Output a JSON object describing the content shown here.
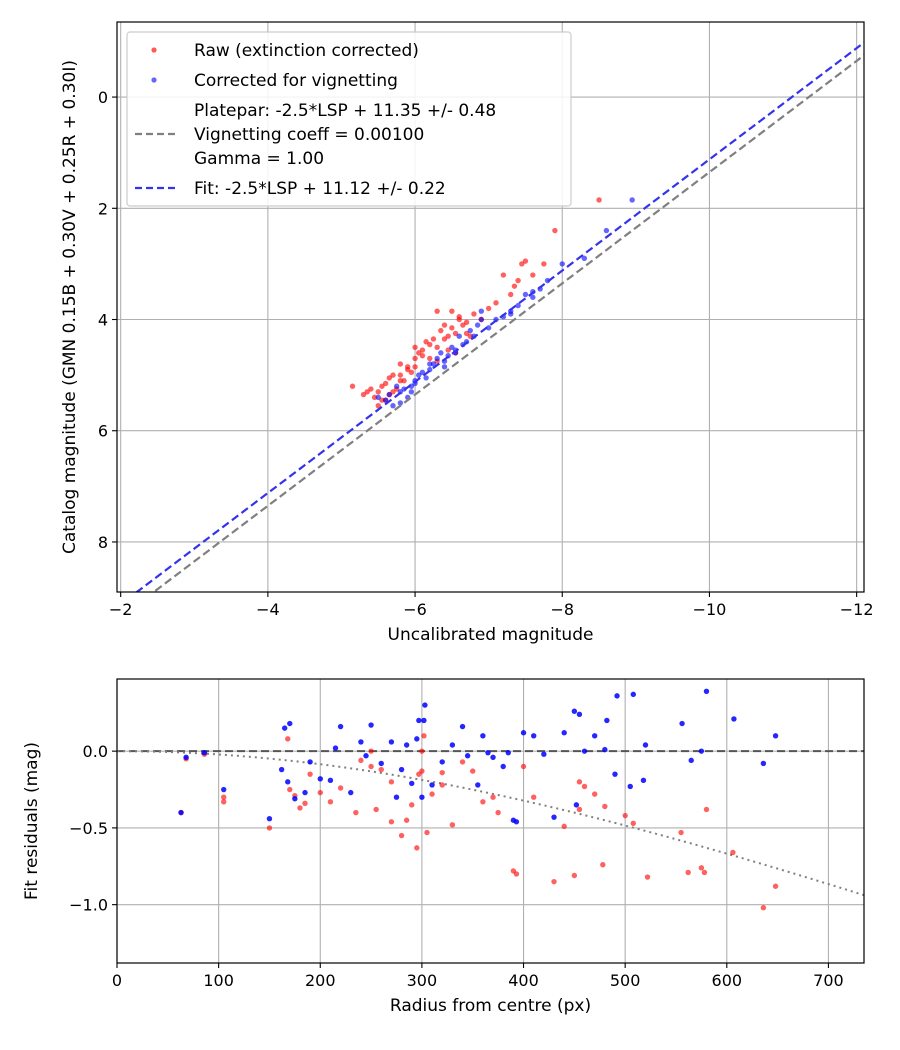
{
  "chart_data": [
    {
      "type": "scatter",
      "xlabel": "Uncalibrated magnitude",
      "ylabel": "Catalog magnitude (GMN 0.15B + 0.30V + 0.25R + 0.30I)",
      "xlim": [
        -1.95,
        -12.1
      ],
      "ylim": [
        8.9,
        -1.35
      ],
      "x_inverted": true,
      "y_inverted": true,
      "grid": true,
      "legend_position": "top-left",
      "xticks": [
        -2,
        -4,
        -6,
        -8,
        -10,
        -12
      ],
      "xtick_labels": [
        "−2",
        "−4",
        "−6",
        "−8",
        "−10",
        "−12"
      ],
      "yticks": [
        0,
        2,
        4,
        6,
        8
      ],
      "ytick_labels": [
        "0",
        "2",
        "4",
        "6",
        "8"
      ],
      "legend": {
        "raw": "Raw (extinction corrected)",
        "corrected": "Corrected for vignetting",
        "platepar": [
          "Platepar: -2.5*LSP + 11.35 +/- 0.48",
          "Vignetting coeff = 0.00100",
          "Gamma = 1.00"
        ],
        "fit": "Fit: -2.5*LSP + 11.12 +/- 0.22"
      },
      "colors": {
        "raw": "#ff0000",
        "corrected": "#0000ff",
        "platepar_line": "#808080",
        "fit_line": "#3333ee"
      },
      "lines": [
        {
          "key": "platepar",
          "slope": 1,
          "intercept": 11.35,
          "style": "dashed"
        },
        {
          "key": "fit",
          "slope": 1,
          "intercept": 11.12,
          "style": "dashed"
        }
      ],
      "series": [
        {
          "key": "raw",
          "name": "Raw (extinction corrected)",
          "x": [
            -5.15,
            -5.3,
            -5.35,
            -5.4,
            -5.45,
            -5.5,
            -5.55,
            -5.6,
            -5.65,
            -5.7,
            -5.75,
            -5.8,
            -5.85,
            -5.9,
            -5.95,
            -6.0,
            -5.5,
            -5.6,
            -5.7,
            -5.8,
            -5.9,
            -6.0,
            -6.05,
            -6.1,
            -6.15,
            -6.2,
            -6.25,
            -6.3,
            -6.35,
            -6.4,
            -6.45,
            -6.5,
            -6.55,
            -6.6,
            -6.65,
            -6.7,
            -6.75,
            -6.8,
            -6.9,
            -7.0,
            -7.1,
            -7.2,
            -7.3,
            -7.35,
            -7.4,
            -7.45,
            -7.5,
            -7.6,
            -7.75,
            -7.9,
            -8.5,
            -6.3,
            -6.5,
            -6.6,
            -6.7,
            -5.8,
            -6.0,
            -6.2,
            -6.4,
            -6.1,
            -5.65,
            -5.55,
            -6.45,
            -6.3,
            -6.55
          ],
          "y": [
            5.2,
            5.35,
            5.3,
            5.25,
            5.4,
            5.3,
            5.2,
            5.15,
            5.35,
            5.0,
            5.25,
            4.8,
            5.1,
            4.9,
            4.95,
            4.7,
            5.55,
            5.45,
            5.3,
            5.1,
            4.85,
            4.5,
            4.6,
            4.55,
            4.4,
            4.7,
            4.35,
            4.5,
            4.2,
            4.1,
            4.3,
            4.15,
            4.25,
            4.0,
            4.1,
            4.05,
            4.3,
            3.9,
            4.0,
            3.8,
            3.7,
            3.2,
            3.55,
            3.4,
            3.3,
            3.0,
            2.95,
            3.2,
            3.0,
            2.4,
            1.85,
            3.85,
            3.85,
            3.95,
            4.25,
            5.0,
            4.85,
            4.45,
            4.35,
            4.65,
            5.05,
            5.45,
            4.55,
            4.75,
            4.6
          ]
        },
        {
          "key": "corrected",
          "name": "Corrected for vignetting",
          "x": [
            -5.5,
            -5.6,
            -5.7,
            -5.8,
            -5.85,
            -5.9,
            -5.95,
            -6.0,
            -6.05,
            -6.1,
            -6.15,
            -6.2,
            -6.25,
            -6.3,
            -6.35,
            -6.4,
            -6.45,
            -6.5,
            -6.55,
            -6.6,
            -6.65,
            -6.7,
            -6.75,
            -6.8,
            -6.85,
            -6.9,
            -7.0,
            -7.1,
            -7.2,
            -7.3,
            -7.4,
            -7.5,
            -7.6,
            -7.7,
            -7.8,
            -8.0,
            -8.3,
            -8.6,
            -8.95,
            -5.75,
            -5.65,
            -5.8,
            -6.0,
            -6.2,
            -6.4,
            -6.9,
            -7.3,
            -7.6,
            -6.55,
            -5.95
          ],
          "y": [
            5.4,
            5.45,
            5.55,
            5.3,
            5.25,
            5.4,
            5.2,
            5.15,
            5.0,
            4.95,
            5.05,
            4.9,
            4.8,
            4.7,
            4.6,
            4.85,
            4.65,
            4.5,
            4.55,
            4.3,
            4.45,
            4.4,
            4.2,
            4.3,
            4.1,
            4.0,
            4.15,
            4.0,
            3.95,
            3.85,
            3.75,
            3.55,
            3.6,
            3.45,
            3.3,
            3.0,
            2.9,
            2.4,
            1.85,
            5.2,
            5.35,
            5.5,
            5.1,
            4.8,
            4.75,
            3.85,
            3.9,
            3.5,
            4.6,
            5.3
          ]
        }
      ]
    },
    {
      "type": "scatter",
      "xlabel": "Radius from centre (px)",
      "ylabel": "Fit residuals (mag)",
      "xlim": [
        0,
        735
      ],
      "ylim": [
        -1.38,
        0.47
      ],
      "grid": true,
      "xticks": [
        0,
        100,
        200,
        300,
        400,
        500,
        600,
        700
      ],
      "xtick_labels": [
        "0",
        "100",
        "200",
        "300",
        "400",
        "500",
        "600",
        "700"
      ],
      "yticks": [
        0.0,
        -0.5,
        -1.0
      ],
      "ytick_labels": [
        "0.0",
        "−0.5",
        "−1.0"
      ],
      "colors": {
        "raw": "#ff0000",
        "corrected": "#0000ff",
        "zero_line": "#555555",
        "model_line": "#808080"
      },
      "lines": [
        {
          "key": "zero",
          "style": "dashed",
          "y": 0
        },
        {
          "key": "vignetting-model",
          "style": "dotted",
          "coeff": 0.001
        }
      ],
      "series": [
        {
          "key": "raw",
          "x": [
            63,
            86,
            105,
            150,
            170,
            175,
            180,
            185,
            190,
            200,
            210,
            220,
            235,
            240,
            250,
            255,
            260,
            270,
            280,
            285,
            290,
            295,
            297,
            300,
            302,
            305,
            310,
            320,
            330,
            340,
            350,
            360,
            370,
            375,
            390,
            393,
            400,
            410,
            430,
            440,
            450,
            455,
            460,
            470,
            478,
            480,
            500,
            508,
            522,
            555,
            562,
            575,
            578,
            580,
            606,
            636,
            648,
            68,
            105,
            168,
            270,
            320,
            455,
            300,
            250
          ],
          "y": [
            -0.4,
            -0.02,
            -0.33,
            -0.5,
            -0.25,
            -0.29,
            -0.37,
            -0.34,
            -0.15,
            -0.27,
            -0.33,
            -0.24,
            -0.4,
            -0.06,
            0.0,
            -0.38,
            -0.12,
            -0.46,
            -0.55,
            -0.45,
            -0.35,
            -0.63,
            -0.15,
            -0.13,
            0.1,
            -0.53,
            -0.28,
            -0.22,
            -0.48,
            -0.07,
            -0.13,
            -0.33,
            -0.3,
            -0.4,
            -0.78,
            -0.8,
            -0.1,
            -0.3,
            -0.85,
            -0.49,
            -0.81,
            -0.2,
            -0.23,
            -0.28,
            -0.74,
            -0.36,
            -0.42,
            -0.47,
            -0.82,
            -0.53,
            -0.79,
            -0.76,
            -0.79,
            -0.38,
            -0.66,
            -1.02,
            -0.88,
            -0.05,
            -0.3,
            0.08,
            -0.2,
            -0.14,
            -0.38,
            0.0,
            -0.1
          ]
        },
        {
          "key": "corrected",
          "x": [
            63,
            68,
            86,
            105,
            150,
            162,
            165,
            168,
            170,
            175,
            185,
            190,
            200,
            210,
            215,
            220,
            230,
            240,
            245,
            250,
            260,
            270,
            275,
            280,
            285,
            290,
            295,
            297,
            300,
            302,
            303,
            310,
            320,
            330,
            340,
            345,
            355,
            360,
            365,
            370,
            380,
            385,
            390,
            393,
            400,
            410,
            420,
            430,
            440,
            450,
            452,
            455,
            460,
            470,
            480,
            482,
            490,
            492,
            505,
            508,
            518,
            520,
            556,
            565,
            575,
            580,
            607,
            636,
            648
          ],
          "y": [
            -0.4,
            -0.04,
            -0.01,
            -0.25,
            -0.44,
            -0.12,
            0.15,
            -0.2,
            0.18,
            -0.31,
            -0.27,
            -0.07,
            -0.18,
            -0.19,
            0.02,
            0.16,
            -0.27,
            0.06,
            -0.03,
            0.17,
            -0.08,
            0.06,
            -0.3,
            -0.12,
            0.04,
            -0.21,
            0.08,
            0.2,
            -0.3,
            0.2,
            0.3,
            -0.22,
            -0.07,
            0.04,
            0.16,
            -0.03,
            -0.22,
            0.1,
            -0.01,
            -0.04,
            -0.1,
            -0.01,
            -0.45,
            -0.46,
            0.12,
            0.1,
            -0.02,
            -0.43,
            0.12,
            0.26,
            -0.35,
            0.24,
            0.0,
            0.1,
            0.01,
            0.2,
            -0.15,
            0.36,
            -0.23,
            0.37,
            -0.19,
            0.04,
            0.18,
            -0.06,
            0.0,
            0.39,
            0.21,
            -0.08,
            0.1
          ]
        }
      ]
    }
  ]
}
